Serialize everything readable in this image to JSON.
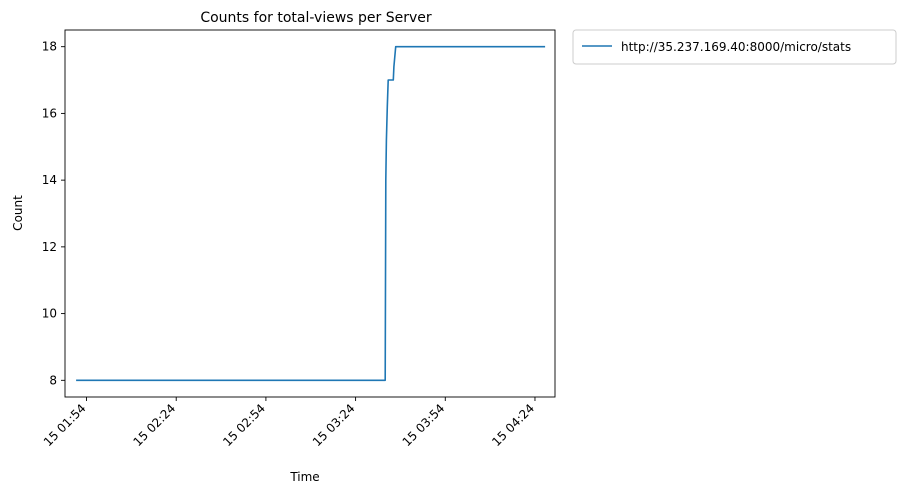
{
  "chart_data": {
    "type": "line",
    "title": "Counts for total-views per Server",
    "xlabel": "Time",
    "ylabel": "Count",
    "x_ticks": [
      "15 01:54",
      "15 02:24",
      "15 02:54",
      "15 03:24",
      "15 03:54",
      "15 04:24"
    ],
    "x_tick_minutes": [
      114,
      144,
      174,
      204,
      234,
      264
    ],
    "xlim_minutes": [
      106.8,
      270.7
    ],
    "ylim": [
      7.5,
      18.5
    ],
    "y_ticks": [
      8,
      10,
      12,
      14,
      16,
      18
    ],
    "grid": false,
    "legend_position": "outside-top-right",
    "series": [
      {
        "name": "http://35.237.169.40:8000/micro/stats",
        "color": "#1f77b4",
        "x_minutes": [
          110.5,
          130,
          150,
          170,
          190,
          210,
          213.9,
          214.1,
          214.3,
          214.6,
          214.9,
          215.2,
          215.6,
          216.6,
          216.8,
          217.4,
          218.5,
          240,
          267.4
        ],
        "values": [
          8,
          8,
          8,
          8,
          8,
          8,
          8,
          14,
          15.2,
          16.2,
          17,
          17,
          17,
          17,
          17.4,
          18,
          18,
          18,
          18
        ]
      }
    ]
  }
}
